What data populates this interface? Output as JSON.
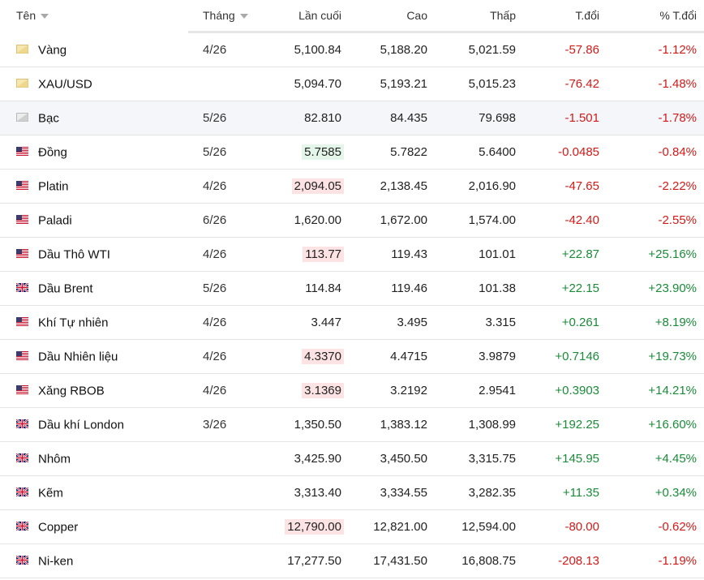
{
  "header": {
    "name": "Tên",
    "month": "Tháng",
    "last": "Lần cuối",
    "high": "Cao",
    "low": "Thấp",
    "change": "T.đổi",
    "change_pct": "% T.đổi"
  },
  "colors": {
    "negative": "#d01a1a",
    "positive": "#1b8a3a",
    "highlight_down": "#fde3e3",
    "highlight_up": "#e4f6ea"
  },
  "rows": [
    {
      "flag": "gold-icon",
      "name": "Vàng",
      "month": "4/26",
      "last": "5,100.84",
      "high": "5,188.20",
      "low": "5,021.59",
      "change": "-57.86",
      "change_pct": "-1.12%",
      "dir": "neg",
      "hl": ""
    },
    {
      "flag": "gold-icon",
      "name": "XAU/USD",
      "month": "",
      "last": "5,094.70",
      "high": "5,193.21",
      "low": "5,015.23",
      "change": "-76.42",
      "change_pct": "-1.48%",
      "dir": "neg",
      "hl": ""
    },
    {
      "flag": "silver-icon",
      "name": "Bạc",
      "month": "5/26",
      "last": "82.810",
      "high": "84.435",
      "low": "79.698",
      "change": "-1.501",
      "change_pct": "-1.78%",
      "dir": "neg",
      "hl": ""
    },
    {
      "flag": "us-flag-icon",
      "name": "Đồng",
      "month": "5/26",
      "last": "5.7585",
      "high": "5.7822",
      "low": "5.6400",
      "change": "-0.0485",
      "change_pct": "-0.84%",
      "dir": "neg",
      "hl": "green"
    },
    {
      "flag": "us-flag-icon",
      "name": "Platin",
      "month": "4/26",
      "last": "2,094.05",
      "high": "2,138.45",
      "low": "2,016.90",
      "change": "-47.65",
      "change_pct": "-2.22%",
      "dir": "neg",
      "hl": "red"
    },
    {
      "flag": "us-flag-icon",
      "name": "Paladi",
      "month": "6/26",
      "last": "1,620.00",
      "high": "1,672.00",
      "low": "1,574.00",
      "change": "-42.40",
      "change_pct": "-2.55%",
      "dir": "neg",
      "hl": ""
    },
    {
      "flag": "us-flag-icon",
      "name": "Dầu Thô WTI",
      "month": "4/26",
      "last": "113.77",
      "high": "119.43",
      "low": "101.01",
      "change": "+22.87",
      "change_pct": "+25.16%",
      "dir": "pos",
      "hl": "red"
    },
    {
      "flag": "uk-flag-icon",
      "name": "Dầu Brent",
      "month": "5/26",
      "last": "114.84",
      "high": "119.46",
      "low": "101.38",
      "change": "+22.15",
      "change_pct": "+23.90%",
      "dir": "pos",
      "hl": ""
    },
    {
      "flag": "us-flag-icon",
      "name": "Khí Tự nhiên",
      "month": "4/26",
      "last": "3.447",
      "high": "3.495",
      "low": "3.315",
      "change": "+0.261",
      "change_pct": "+8.19%",
      "dir": "pos",
      "hl": ""
    },
    {
      "flag": "us-flag-icon",
      "name": "Dầu Nhiên liệu",
      "month": "4/26",
      "last": "4.3370",
      "high": "4.4715",
      "low": "3.9879",
      "change": "+0.7146",
      "change_pct": "+19.73%",
      "dir": "pos",
      "hl": "red"
    },
    {
      "flag": "us-flag-icon",
      "name": "Xăng RBOB",
      "month": "4/26",
      "last": "3.1369",
      "high": "3.2192",
      "low": "2.9541",
      "change": "+0.3903",
      "change_pct": "+14.21%",
      "dir": "pos",
      "hl": "red"
    },
    {
      "flag": "uk-flag-icon",
      "name": "Dầu khí London",
      "month": "3/26",
      "last": "1,350.50",
      "high": "1,383.12",
      "low": "1,308.99",
      "change": "+192.25",
      "change_pct": "+16.60%",
      "dir": "pos",
      "hl": ""
    },
    {
      "flag": "uk-flag-icon",
      "name": "Nhôm",
      "month": "",
      "last": "3,425.90",
      "high": "3,450.50",
      "low": "3,315.75",
      "change": "+145.95",
      "change_pct": "+4.45%",
      "dir": "pos",
      "hl": ""
    },
    {
      "flag": "uk-flag-icon",
      "name": "Kẽm",
      "month": "",
      "last": "3,313.40",
      "high": "3,334.55",
      "low": "3,282.35",
      "change": "+11.35",
      "change_pct": "+0.34%",
      "dir": "pos",
      "hl": ""
    },
    {
      "flag": "uk-flag-icon",
      "name": "Copper",
      "month": "",
      "last": "12,790.00",
      "high": "12,821.00",
      "low": "12,594.00",
      "change": "-80.00",
      "change_pct": "-0.62%",
      "dir": "neg",
      "hl": "red"
    },
    {
      "flag": "uk-flag-icon",
      "name": "Ni-ken",
      "month": "",
      "last": "17,277.50",
      "high": "17,431.50",
      "low": "16,808.75",
      "change": "-208.13",
      "change_pct": "-1.19%",
      "dir": "neg",
      "hl": ""
    }
  ]
}
